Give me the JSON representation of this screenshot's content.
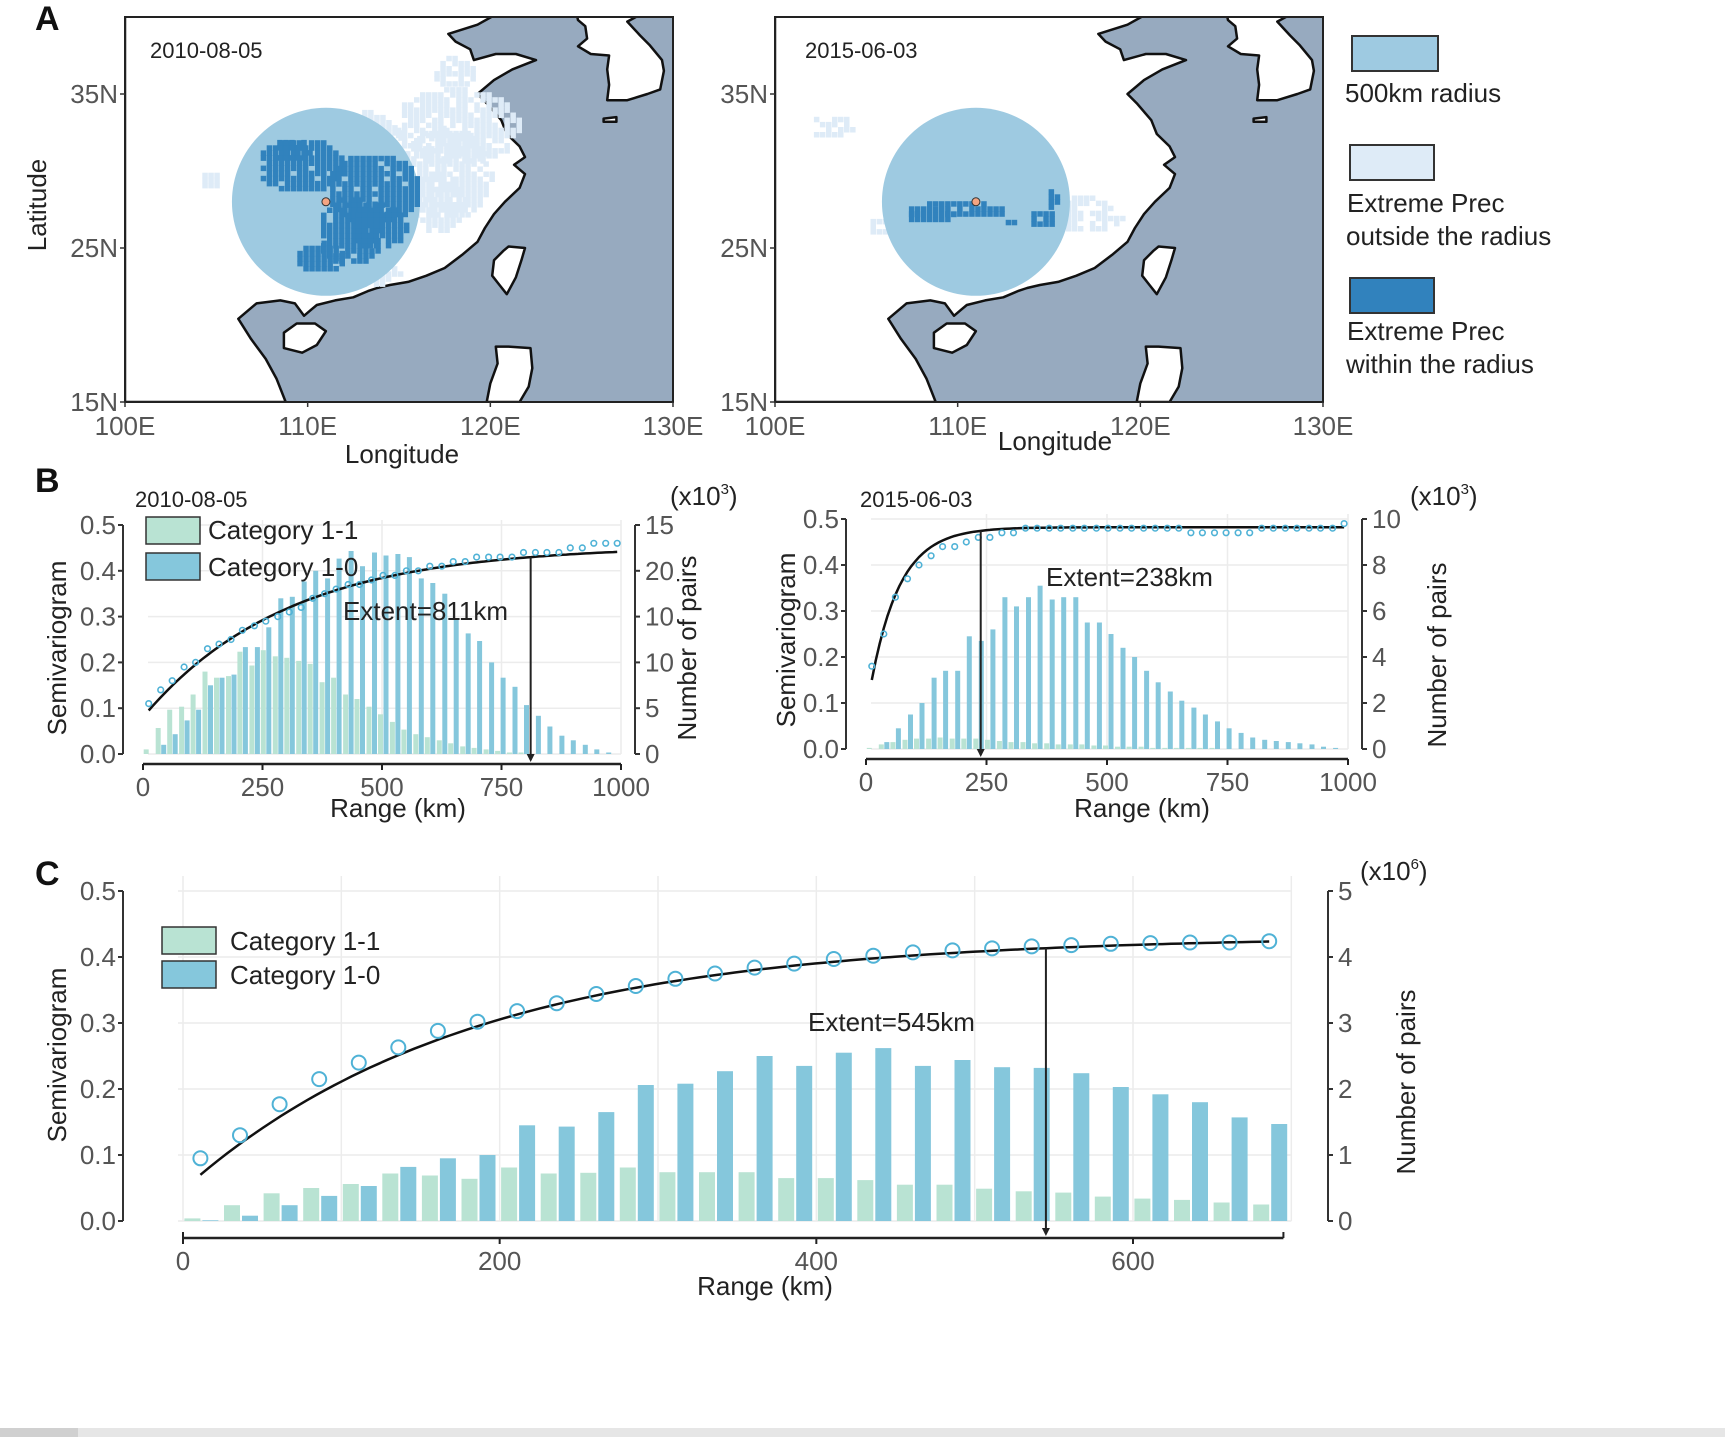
{
  "figure": {
    "panel_labels": [
      "A",
      "B",
      "C"
    ]
  },
  "panel_a": {
    "maps": [
      {
        "date": "2010-08-05",
        "xlabel": "Longitude",
        "ylabel": "Latitude",
        "x_ticks": [
          "100E",
          "110E",
          "120E",
          "130E"
        ],
        "y_ticks": [
          "35N",
          "25N",
          "15N"
        ],
        "center_lon": 111.0,
        "center_lat": 28.0
      },
      {
        "date": "2015-06-03",
        "xlabel": "Longitude",
        "ylabel": "",
        "x_ticks": [
          "100E",
          "110E",
          "120E",
          "130E"
        ],
        "y_ticks": [
          "35N",
          "25N",
          "15N"
        ],
        "center_lon": 111.0,
        "center_lat": 28.0
      }
    ],
    "legend": [
      {
        "label_lines": [
          "500km radius"
        ],
        "color": "#9ecae1"
      },
      {
        "label_lines": [
          "Extreme Prec",
          "outside the radius"
        ],
        "color": "#deebf7"
      },
      {
        "label_lines": [
          "Extreme Prec",
          "within the radius"
        ],
        "color": "#3182bd"
      }
    ],
    "colors": {
      "ocean": "#97aabf",
      "land": "#ffffff",
      "radius": "#9ecae1",
      "outside": "#deebf7",
      "within": "#3182bd",
      "center_point": "#f4a582"
    }
  },
  "chart_data": [
    {
      "id": "B-left",
      "type": "bar+line",
      "title": "2010-08-05",
      "xlabel": "Range (km)",
      "ylabel": "Semivariogram",
      "y2label": "Number of pairs",
      "y2_multiplier": "(x10^3)",
      "xlim": [
        0,
        1000
      ],
      "ylim": [
        0,
        0.5
      ],
      "x_ticks": [
        0,
        250,
        500,
        750,
        1000
      ],
      "y_ticks": [
        "0.0",
        "0.1",
        "0.2",
        "0.3",
        "0.4",
        "0.5"
      ],
      "y2_tick_labels_as_printed": [
        "0",
        "5",
        "10",
        "10",
        "20",
        "15"
      ],
      "y2_max": 15,
      "legend": [
        "Category 1-1",
        "Category 1-0"
      ],
      "legend_placement": "top-left",
      "annotation": "Extent=811km",
      "extent": 811,
      "x": [
        12,
        37,
        61,
        86,
        110,
        135,
        159,
        184,
        208,
        233,
        257,
        282,
        306,
        331,
        355,
        380,
        404,
        429,
        453,
        478,
        502,
        527,
        551,
        576,
        600,
        625,
        649,
        674,
        698,
        723,
        747,
        772,
        796,
        821,
        845,
        870,
        894,
        919,
        943,
        968,
        992
      ],
      "series": [
        {
          "name": "Category 1-1",
          "values": [
            0.3,
            1.7,
            2.9,
            3.1,
            3.9,
            5.4,
            5.0,
            5.1,
            6.7,
            5.8,
            6.8,
            6.4,
            6.3,
            6.1,
            5.9,
            4.7,
            5.0,
            3.9,
            3.6,
            3.1,
            2.6,
            2.1,
            1.6,
            1.3,
            1.1,
            0.9,
            0.7,
            0.5,
            0.4,
            0.3,
            0.2,
            0.1,
            0.1,
            0.0,
            0.0,
            0.0,
            0.0,
            0.0,
            0.0,
            0.0,
            0.0
          ]
        },
        {
          "name": "Category 1-0",
          "values": [
            0.0,
            0.6,
            1.3,
            2.2,
            2.9,
            4.5,
            5.0,
            5.2,
            7.0,
            7.0,
            8.3,
            10.2,
            10.3,
            11.3,
            12.0,
            11.5,
            12.8,
            13.3,
            12.3,
            13.2,
            13.0,
            13.1,
            12.9,
            11.5,
            11.2,
            10.5,
            8.8,
            7.9,
            7.4,
            6.0,
            5.0,
            4.4,
            3.2,
            2.5,
            1.8,
            1.2,
            0.9,
            0.6,
            0.3,
            0.1,
            0.0
          ]
        },
        {
          "name": "Semivariogram (observed)",
          "values": [
            0.11,
            0.14,
            0.16,
            0.19,
            0.2,
            0.23,
            0.24,
            0.25,
            0.27,
            0.28,
            0.29,
            0.3,
            0.31,
            0.32,
            0.34,
            0.35,
            0.36,
            0.37,
            0.37,
            0.38,
            0.39,
            0.39,
            0.4,
            0.4,
            0.41,
            0.41,
            0.42,
            0.42,
            0.43,
            0.43,
            0.43,
            0.43,
            0.44,
            0.44,
            0.44,
            0.44,
            0.45,
            0.45,
            0.46,
            0.46,
            0.46
          ]
        },
        {
          "name": "Fitted model",
          "model": "exponential",
          "nugget": 0.095,
          "sill": 0.455,
          "range_param": 300
        }
      ]
    },
    {
      "id": "B-right",
      "type": "bar+line",
      "title": "2015-06-03",
      "xlabel": "Range (km)",
      "ylabel": "Semivariogram",
      "y2label": "Number of pairs",
      "y2_multiplier": "(x10^3)",
      "xlim": [
        0,
        1000
      ],
      "ylim": [
        0,
        0.5
      ],
      "x_ticks": [
        0,
        250,
        500,
        750,
        1000
      ],
      "y_ticks": [
        "0.0",
        "0.1",
        "0.2",
        "0.3",
        "0.4",
        "0.5"
      ],
      "y2_tick_labels_as_printed": [
        "0",
        "2",
        "4",
        "6",
        "8",
        "10"
      ],
      "y2_max": 10,
      "annotation": "Extent=238km",
      "extent": 238,
      "x": [
        12,
        37,
        61,
        86,
        110,
        135,
        159,
        184,
        208,
        233,
        257,
        282,
        306,
        331,
        355,
        380,
        404,
        429,
        453,
        478,
        502,
        527,
        551,
        576,
        600,
        625,
        649,
        674,
        698,
        723,
        747,
        772,
        796,
        821,
        845,
        870,
        894,
        919,
        943,
        968,
        992
      ],
      "series": [
        {
          "name": "Category 1-1",
          "values": [
            0.05,
            0.2,
            0.3,
            0.4,
            0.45,
            0.45,
            0.5,
            0.45,
            0.45,
            0.45,
            0.4,
            0.35,
            0.3,
            0.3,
            0.25,
            0.25,
            0.2,
            0.2,
            0.2,
            0.15,
            0.15,
            0.1,
            0.1,
            0.1,
            0.05,
            0.05,
            0.05,
            0.05,
            0.05,
            0.05,
            0.0,
            0.0,
            0.0,
            0.0,
            0.0,
            0.0,
            0.0,
            0.0,
            0.0,
            0.0,
            0.0
          ]
        },
        {
          "name": "Category 1-0",
          "values": [
            0.0,
            0.3,
            0.9,
            1.5,
            2.0,
            3.1,
            3.4,
            3.4,
            4.9,
            4.7,
            5.2,
            6.6,
            6.2,
            6.6,
            7.1,
            6.5,
            6.6,
            6.6,
            5.5,
            5.5,
            5.0,
            4.4,
            4.0,
            3.4,
            2.9,
            2.5,
            2.1,
            1.8,
            1.5,
            1.2,
            0.9,
            0.7,
            0.5,
            0.4,
            0.35,
            0.3,
            0.25,
            0.2,
            0.1,
            0.05,
            0.0
          ]
        },
        {
          "name": "Semivariogram (observed)",
          "values": [
            0.18,
            0.25,
            0.33,
            0.37,
            0.4,
            0.42,
            0.44,
            0.44,
            0.45,
            0.46,
            0.46,
            0.47,
            0.47,
            0.48,
            0.48,
            0.48,
            0.48,
            0.48,
            0.48,
            0.48,
            0.48,
            0.48,
            0.48,
            0.48,
            0.48,
            0.48,
            0.48,
            0.47,
            0.47,
            0.47,
            0.47,
            0.47,
            0.47,
            0.48,
            0.48,
            0.48,
            0.48,
            0.48,
            0.48,
            0.48,
            0.49
          ]
        },
        {
          "name": "Fitted model",
          "model": "exponential",
          "nugget": 0.15,
          "sill": 0.482,
          "range_param": 60
        }
      ]
    },
    {
      "id": "C",
      "type": "bar+line",
      "title": "",
      "xlabel": "Range (km)",
      "ylabel": "Semivariogram",
      "y2label": "Number of pairs",
      "y2_multiplier": "(x10^6)",
      "xlim": [
        0,
        700
      ],
      "ylim": [
        0,
        0.5
      ],
      "x_ticks": [
        0,
        200,
        400,
        600
      ],
      "y_ticks": [
        "0.0",
        "0.1",
        "0.2",
        "0.3",
        "0.4",
        "0.5"
      ],
      "y2_tick_labels_as_printed": [
        "0",
        "1",
        "2",
        "3",
        "4",
        "5"
      ],
      "y2_max": 5,
      "legend": [
        "Category 1-1",
        "Category 1-0"
      ],
      "legend_placement": "top-left",
      "annotation": "Extent=545km",
      "extent": 545,
      "x": [
        11,
        36,
        61,
        86,
        111,
        136,
        161,
        186,
        211,
        236,
        261,
        286,
        311,
        336,
        361,
        386,
        411,
        436,
        461,
        486,
        511,
        536,
        561,
        586,
        611,
        636,
        661,
        686
      ],
      "series": [
        {
          "name": "Category 1-1",
          "values": [
            0.04,
            0.24,
            0.42,
            0.5,
            0.56,
            0.72,
            0.69,
            0.64,
            0.81,
            0.72,
            0.73,
            0.81,
            0.74,
            0.74,
            0.74,
            0.65,
            0.65,
            0.62,
            0.55,
            0.55,
            0.49,
            0.45,
            0.43,
            0.37,
            0.34,
            0.32,
            0.28,
            0.25
          ]
        },
        {
          "name": "Category 1-0",
          "values": [
            0.01,
            0.08,
            0.24,
            0.38,
            0.53,
            0.82,
            0.95,
            1.0,
            1.45,
            1.43,
            1.65,
            2.06,
            2.08,
            2.27,
            2.5,
            2.35,
            2.55,
            2.62,
            2.35,
            2.44,
            2.33,
            2.32,
            2.24,
            2.03,
            1.92,
            1.8,
            1.57,
            1.47
          ]
        },
        {
          "name": "Semivariogram (observed)",
          "values": [
            0.095,
            0.13,
            0.177,
            0.215,
            0.24,
            0.263,
            0.288,
            0.302,
            0.318,
            0.33,
            0.344,
            0.356,
            0.367,
            0.375,
            0.384,
            0.39,
            0.397,
            0.402,
            0.407,
            0.41,
            0.413,
            0.416,
            0.418,
            0.42,
            0.421,
            0.422,
            0.422,
            0.424
          ]
        },
        {
          "name": "Fitted model",
          "model": "exponential",
          "nugget": 0.07,
          "sill": 0.432,
          "range_param": 180
        }
      ]
    }
  ],
  "text": {
    "semivariogram": "Semivariogram",
    "number_of_pairs": "Number of pairs",
    "range_km": "Range (km)",
    "x10_3": "(x10",
    "exp3": "3",
    "exp6": "6",
    "close_paren": ")"
  },
  "colors": {
    "cat11": "#b9e3d3",
    "cat10": "#85c7dc",
    "points": "#4fb2d6",
    "line": "#111111",
    "grid": "#ececec",
    "axis": "#333333"
  }
}
